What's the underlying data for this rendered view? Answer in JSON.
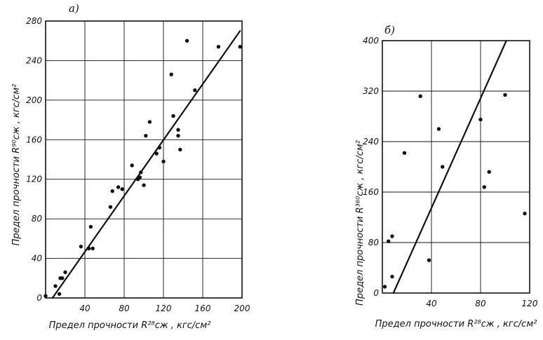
{
  "chart_data": [
    {
      "type": "scatter",
      "panel_label": "a)",
      "xlabel": "Предел прочности R²⁸сж , кгс/см²",
      "ylabel": "Предел прочности R⁹⁰сж , кгс/см²",
      "xlim": [
        0,
        200
      ],
      "ylim": [
        0,
        280
      ],
      "x_ticks": [
        40,
        80,
        120,
        160,
        200
      ],
      "x_tick_labels": [
        "40",
        "80",
        "120",
        "160",
        "200"
      ],
      "y_ticks": [
        0,
        40,
        80,
        120,
        160,
        200,
        240,
        280
      ],
      "y_tick_labels": [
        "0",
        "40",
        "80",
        "120",
        "160",
        "200",
        "240",
        "280"
      ],
      "grid": true,
      "points": [
        {
          "x": 0,
          "y": 2
        },
        {
          "x": 10,
          "y": 12
        },
        {
          "x": 15,
          "y": 20
        },
        {
          "x": 14,
          "y": 4
        },
        {
          "x": 17,
          "y": 20
        },
        {
          "x": 20,
          "y": 26
        },
        {
          "x": 36,
          "y": 52
        },
        {
          "x": 44,
          "y": 50
        },
        {
          "x": 48,
          "y": 50
        },
        {
          "x": 46,
          "y": 72
        },
        {
          "x": 66,
          "y": 92
        },
        {
          "x": 68,
          "y": 108
        },
        {
          "x": 74,
          "y": 112
        },
        {
          "x": 78,
          "y": 110
        },
        {
          "x": 88,
          "y": 134
        },
        {
          "x": 94,
          "y": 120
        },
        {
          "x": 96,
          "y": 122
        },
        {
          "x": 97,
          "y": 127
        },
        {
          "x": 100,
          "y": 114
        },
        {
          "x": 102,
          "y": 164
        },
        {
          "x": 106,
          "y": 178
        },
        {
          "x": 113,
          "y": 146
        },
        {
          "x": 116,
          "y": 152
        },
        {
          "x": 120,
          "y": 138
        },
        {
          "x": 128,
          "y": 226
        },
        {
          "x": 130,
          "y": 184
        },
        {
          "x": 135,
          "y": 170
        },
        {
          "x": 135,
          "y": 164
        },
        {
          "x": 137,
          "y": 150
        },
        {
          "x": 144,
          "y": 260
        },
        {
          "x": 152,
          "y": 210
        },
        {
          "x": 176,
          "y": 254
        },
        {
          "x": 198,
          "y": 254
        }
      ],
      "fit_line": [
        {
          "x": 7,
          "y": 0
        },
        {
          "x": 198,
          "y": 270
        }
      ]
    },
    {
      "type": "scatter",
      "panel_label": "б)",
      "xlabel": "Предел прочности R²⁸сж , кгс/см²",
      "ylabel": "Предел прочности R³⁶⁰сж , кгс/см²",
      "xlim": [
        0,
        120
      ],
      "ylim": [
        0,
        400
      ],
      "x_ticks": [
        40,
        80,
        120
      ],
      "x_tick_labels": [
        "40",
        "80",
        "120"
      ],
      "y_ticks": [
        0,
        80,
        160,
        240,
        320,
        400
      ],
      "y_tick_labels": [
        "0",
        "80",
        "160",
        "240",
        "320",
        "400"
      ],
      "grid": true,
      "points": [
        {
          "x": 2,
          "y": 10
        },
        {
          "x": 5,
          "y": 82
        },
        {
          "x": 8,
          "y": 90
        },
        {
          "x": 8,
          "y": 26
        },
        {
          "x": 18,
          "y": 222
        },
        {
          "x": 31,
          "y": 312
        },
        {
          "x": 38,
          "y": 52
        },
        {
          "x": 46,
          "y": 260
        },
        {
          "x": 49,
          "y": 200
        },
        {
          "x": 80,
          "y": 275
        },
        {
          "x": 83,
          "y": 168
        },
        {
          "x": 87,
          "y": 192
        },
        {
          "x": 100,
          "y": 314
        },
        {
          "x": 116,
          "y": 126
        }
      ],
      "fit_line": [
        {
          "x": 9,
          "y": 0
        },
        {
          "x": 101,
          "y": 400
        }
      ]
    }
  ]
}
